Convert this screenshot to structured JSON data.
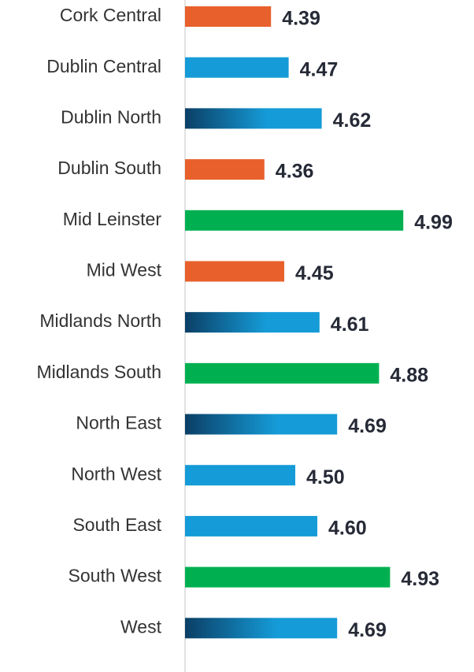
{
  "chart_data": {
    "type": "barh",
    "categories": [
      "Cork Central",
      "Dublin Central",
      "Dublin North",
      "Dublin South",
      "Mid Leinster",
      "Mid West",
      "Midlands North",
      "Midlands South",
      "North East",
      "North West",
      "South East",
      "South West",
      "West"
    ],
    "values": [
      4.39,
      4.47,
      4.62,
      4.36,
      4.99,
      4.45,
      4.61,
      4.88,
      4.69,
      4.5,
      4.6,
      4.93,
      4.69
    ],
    "value_labels": [
      "4.39",
      "4.47",
      "4.62",
      "4.36",
      "4.99",
      "4.45",
      "4.61",
      "4.88",
      "4.69",
      "4.50",
      "4.60",
      "4.93",
      "4.69"
    ],
    "colors": [
      "#e8602c",
      "#159bd7",
      [
        "#0b3f66",
        "#159bd7"
      ],
      "#e8602c",
      "#00b050",
      "#e8602c",
      [
        "#0b3f66",
        "#159bd7"
      ],
      "#00b050",
      [
        "#0b3f66",
        "#159bd7"
      ],
      "#159bd7",
      "#159bd7",
      "#00b050",
      [
        "#0b3f66",
        "#159bd7"
      ]
    ],
    "xlim": [
      4.0,
      5.2
    ]
  }
}
